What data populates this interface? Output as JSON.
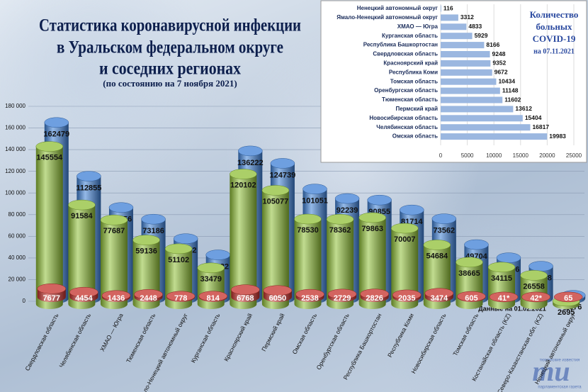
{
  "chart_data": [
    {
      "type": "bar",
      "title": [
        "Статистика коронавирусной инфекции",
        "в Уральском федеральном округе",
        "и соседних регионах"
      ],
      "subtitle": "(по состоянию на 7 ноября 2021)",
      "note": "* Данные на 01.02.2021",
      "categories": [
        "Свердловская область",
        "Челябинская область",
        "ХМАО — Югра",
        "Тюменская область",
        "Ямало-Ненецкий автономный округ",
        "Курганская область",
        "Красноярский край",
        "Пермский край",
        "Омская область",
        "Оренбургская область",
        "Республика Башкортостан",
        "Республика Коми",
        "Новосибирская область",
        "Томская область",
        "Костанайская область (KZ)",
        "Северо-Казахстанская обл. (KZ)",
        "Ненецкий автономный округ"
      ],
      "series": [
        {
          "color": "#3d7fd6",
          "values": [
            162479,
            112855,
            83956,
            73186,
            55192,
            40222,
            136222,
            124739,
            101051,
            92239,
            90855,
            81714,
            73562,
            49704,
            37566,
            29738,
            2876
          ]
        },
        {
          "color": "#8fbf36",
          "values": [
            145554,
            91584,
            77687,
            59136,
            51102,
            33479,
            120102,
            105077,
            78530,
            78362,
            79863,
            70007,
            54684,
            38665,
            34115,
            26558,
            2695
          ]
        },
        {
          "color": "#c4302b",
          "values": [
            7677,
            4454,
            1436,
            2448,
            778,
            814,
            6768,
            6050,
            2538,
            2729,
            2826,
            2035,
            3474,
            605,
            41,
            42,
            65
          ],
          "value_labels": [
            "7677",
            "4454",
            "1436",
            "2448",
            "778",
            "814",
            "6768",
            "6050",
            "2538",
            "2729",
            "2826",
            "2035",
            "3474",
            "605",
            "41*",
            "42*",
            "65"
          ]
        }
      ],
      "ylim": [
        0,
        180000
      ],
      "yticks": [
        0,
        {
          "value": 20000,
          "label": "20 000"
        },
        {
          "value": 40000,
          "label": "40 000"
        },
        {
          "value": 60000,
          "label": "60 000"
        },
        {
          "value": 80000,
          "label": "80 000"
        },
        {
          "value": 100000,
          "label": "100 000"
        },
        {
          "value": 120000,
          "label": "120 000"
        },
        {
          "value": 140000,
          "label": "140 000"
        },
        {
          "value": 160000,
          "label": "160 000"
        },
        {
          "value": 180000,
          "label": "180 000"
        }
      ],
      "grid": true
    },
    {
      "type": "barh",
      "title": [
        "Количество",
        "больных",
        "COVID-19",
        "на 07.11.2021"
      ],
      "categories": [
        "Ненецкий автономный округ",
        "Ямало-Ненецкий автономный округ",
        "ХМАО — Югра",
        "Курганская область",
        "Республика Башкортостан",
        "Свердловская область",
        "Красноярский край",
        "Республика Коми",
        "Томская область",
        "Оренбургская область",
        "Тюменская область",
        "Пермский край",
        "Новосибирская область",
        "Челябинская область",
        "Омская область"
      ],
      "values": [
        116,
        3312,
        4833,
        5929,
        8166,
        9248,
        9352,
        9672,
        10434,
        11148,
        11602,
        13612,
        15404,
        16817,
        19983
      ],
      "color": "#9bb7e0",
      "xlim": [
        0,
        25000
      ],
      "xticks": [
        0,
        5000,
        10000,
        15000,
        20000,
        25000
      ],
      "grid": true
    }
  ],
  "watermark": [
    "mu",
    "тюменские известия",
    "парламентская газета"
  ]
}
